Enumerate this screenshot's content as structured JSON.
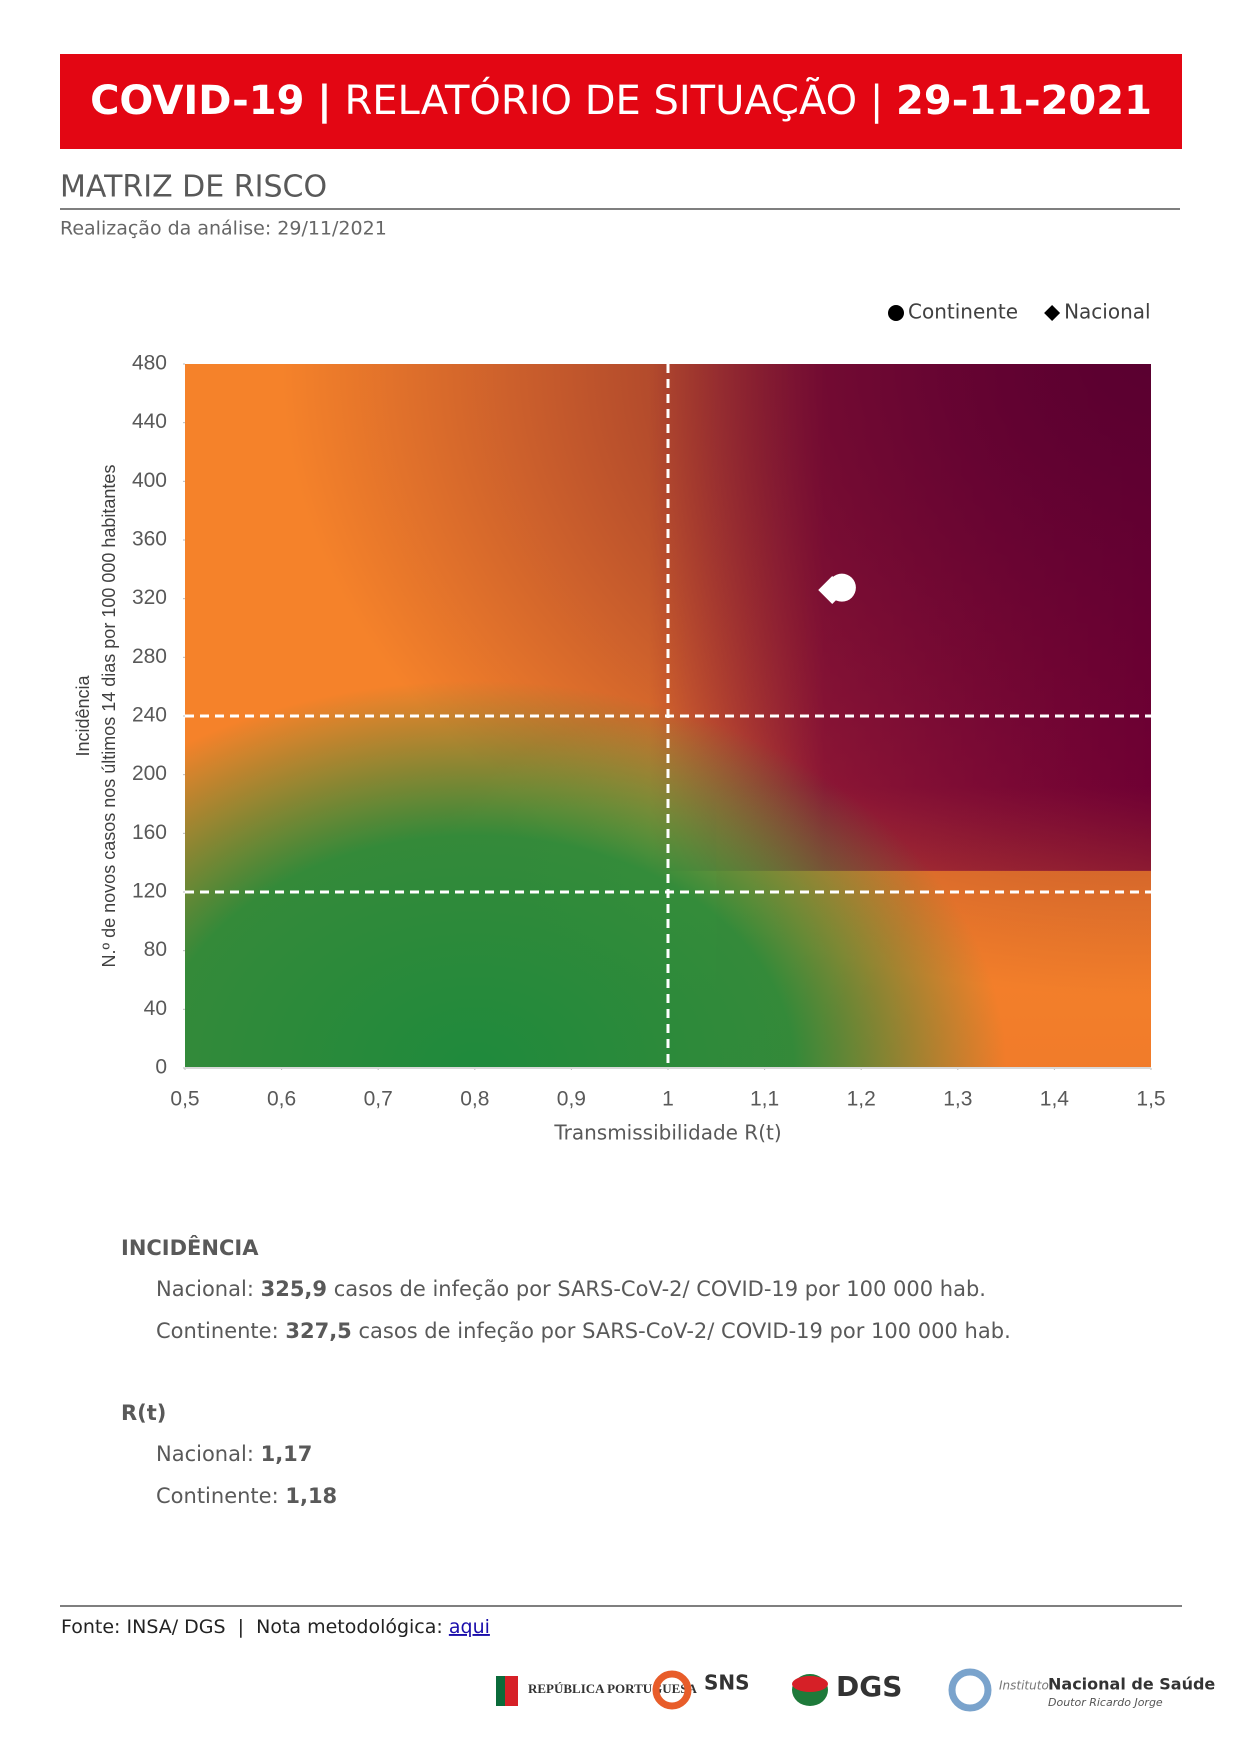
{
  "header": {
    "left": "COVID-19",
    "sep1": "|",
    "middle": "RELATÓRIO DE SITUAÇÃO",
    "sep2": "|",
    "date": "29-11-2021"
  },
  "section": {
    "title": "MATRIZ DE RISCO",
    "subtitle": "Realização da análise: 29/11/2021"
  },
  "chart_data": {
    "type": "scatter",
    "x_label": "Transmissibilidade R(t)",
    "y_label": [
      "Incidência",
      "N.º de novos casos nos últimos 14 dias por 100 000 habitantes"
    ],
    "xlim": [
      0.5,
      1.5
    ],
    "xticks": [
      {
        "value": 0.5,
        "label": "0,5"
      },
      {
        "value": 0.6,
        "label": "0,6"
      },
      {
        "value": 0.7,
        "label": "0,7"
      },
      {
        "value": 0.8,
        "label": "0,8"
      },
      {
        "value": 0.9,
        "label": "0,9"
      },
      1,
      {
        "value": 1.1,
        "label": "1,1"
      },
      {
        "value": 1.2,
        "label": "1,2"
      },
      {
        "value": 1.3,
        "label": "1,3"
      },
      {
        "value": 1.4,
        "label": "1,4"
      },
      {
        "value": 1.5,
        "label": "1,5"
      }
    ],
    "ylim": [
      0,
      480
    ],
    "yticks": [
      0,
      40,
      80,
      120,
      160,
      200,
      240,
      280,
      320,
      360,
      400,
      440,
      480
    ],
    "reference_lines": {
      "x": [
        1
      ],
      "y": [
        120,
        240
      ]
    },
    "legend": "top-right",
    "series": [
      {
        "name": "Continente",
        "marker": "circle",
        "color": "#ffffff",
        "x": [
          1.18
        ],
        "values": [
          327.5
        ]
      },
      {
        "name": "Nacional",
        "marker": "diamond",
        "color": "#ffffff",
        "x": [
          1.17
        ],
        "values": [
          325.9
        ]
      }
    ]
  },
  "incidencia": {
    "title": "INCIDÊNCIA",
    "lines": [
      {
        "label": "Nacional:",
        "value": "325,9",
        "text": "casos de infeção por SARS-CoV-2/ COVID-19 por 100 000 hab."
      },
      {
        "label": "Continente:",
        "value": "327,5",
        "text": "casos de infeção por SARS-CoV-2/ COVID-19 por 100 000 hab."
      }
    ]
  },
  "rt": {
    "title": "R(t)",
    "lines": [
      {
        "label": "Nacional:",
        "value": "1,17"
      },
      {
        "label": "Continente:",
        "value": "1,18"
      }
    ]
  },
  "footer": {
    "source": "Fonte: INSA/ DGS  |  Nota metodológica:",
    "link": "aqui",
    "logos": [
      "REPÚBLICA PORTUGUESA",
      "SNS",
      "DGS",
      "Instituto",
      "Nacional de Saúde",
      "Doutor Ricardo Jorge"
    ]
  }
}
